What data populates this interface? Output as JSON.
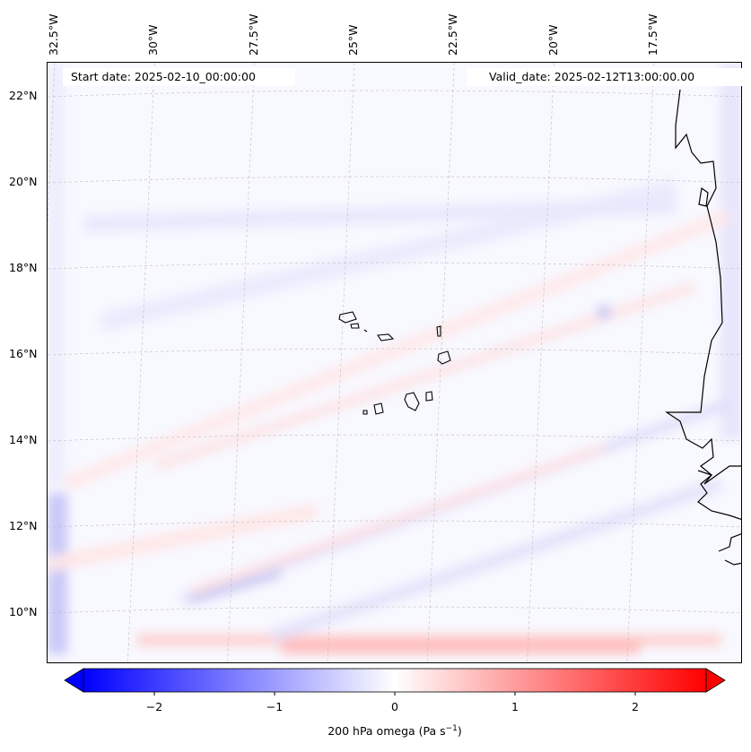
{
  "chart_data": {
    "type": "heatmap",
    "variable": "200 hPa omega",
    "colorbar_label_main": "200 hPa omega (Pa s",
    "colorbar_label_sup": "−1",
    "colorbar_label_end": ")",
    "colorbar_ticks": [
      "−2",
      "−1",
      "0",
      "1",
      "2"
    ],
    "colorbar_tick_values": [
      -2,
      -1,
      0,
      1,
      2
    ],
    "colorbar_range": [
      -2.6,
      2.6
    ],
    "colormap": "bwr",
    "colors": {
      "min": "#0000ff",
      "mid": "#ffffff",
      "max": "#ff0000"
    },
    "lon_labels": [
      "32.5°W",
      "30°W",
      "27.5°W",
      "25°W",
      "22.5°W",
      "20°W",
      "17.5°W"
    ],
    "lon_values": [
      -32.5,
      -30,
      -27.5,
      -25,
      -22.5,
      -20,
      -17.5
    ],
    "lat_labels": [
      "22°N",
      "20°N",
      "18°N",
      "16°N",
      "14°N",
      "12°N",
      "10°N"
    ],
    "lat_values": [
      22,
      20,
      18,
      16,
      14,
      12,
      10
    ],
    "lon_range": [
      -32.7,
      -15.2
    ],
    "lat_range": [
      8.8,
      22.8
    ]
  },
  "header": {
    "start_date": "Start date: 2025-02-10_00:00:00",
    "valid_date": "Valid_date: 2025-02-12T13:00:00.00"
  }
}
